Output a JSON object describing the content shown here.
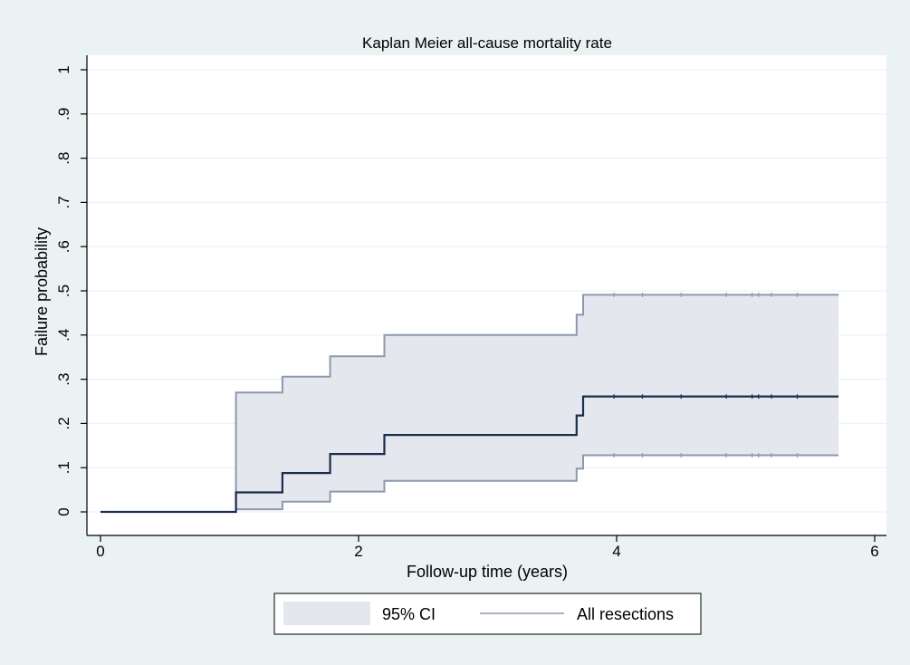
{
  "colors": {
    "background": "#eaf2f3",
    "plot_background": "#ffffff",
    "grid": "#eaf2f3",
    "ci_fill": "#e4e7ee",
    "ci_line": "#8d99ae",
    "estimate_line": "#1a2e4f",
    "axis": "#000000"
  },
  "chart_data": {
    "type": "line",
    "title": "Kaplan Meier all-cause mortality rate",
    "xlabel": "Follow-up time (years)",
    "ylabel": "Failure probability",
    "xlim": [
      0,
      6
    ],
    "ylim": [
      0,
      1
    ],
    "x_ticks": [
      0,
      2,
      4,
      6
    ],
    "x_tick_labels": [
      "0",
      "2",
      "4",
      "6"
    ],
    "y_ticks": [
      0,
      0.1,
      0.2,
      0.3,
      0.4,
      0.5,
      0.6,
      0.7,
      0.8,
      0.9,
      1
    ],
    "y_tick_labels": [
      "0",
      ".1",
      ".2",
      ".3",
      ".4",
      ".5",
      ".6",
      ".7",
      ".8",
      ".9",
      "1"
    ],
    "grid": true,
    "legend_position": "bottom",
    "series": [
      {
        "name": "All resections",
        "kind": "step",
        "x": [
          0,
          1.05,
          1.41,
          1.78,
          2.2,
          3.69,
          3.74,
          5.72
        ],
        "y": [
          0,
          0.044,
          0.088,
          0.131,
          0.174,
          0.218,
          0.261,
          0.261
        ],
        "censor_x": [
          3.98,
          4.2,
          4.5,
          4.85,
          5.05,
          5.1,
          5.2,
          5.4
        ]
      }
    ],
    "confidence_band": {
      "name": "95% CI",
      "x": [
        0,
        1.05,
        1.41,
        1.78,
        2.2,
        3.69,
        3.74,
        5.72
      ],
      "lower": [
        0,
        0.006,
        0.023,
        0.046,
        0.07,
        0.098,
        0.128,
        0.128
      ],
      "upper": [
        0,
        0.27,
        0.306,
        0.352,
        0.4,
        0.446,
        0.491,
        0.491
      ]
    }
  }
}
